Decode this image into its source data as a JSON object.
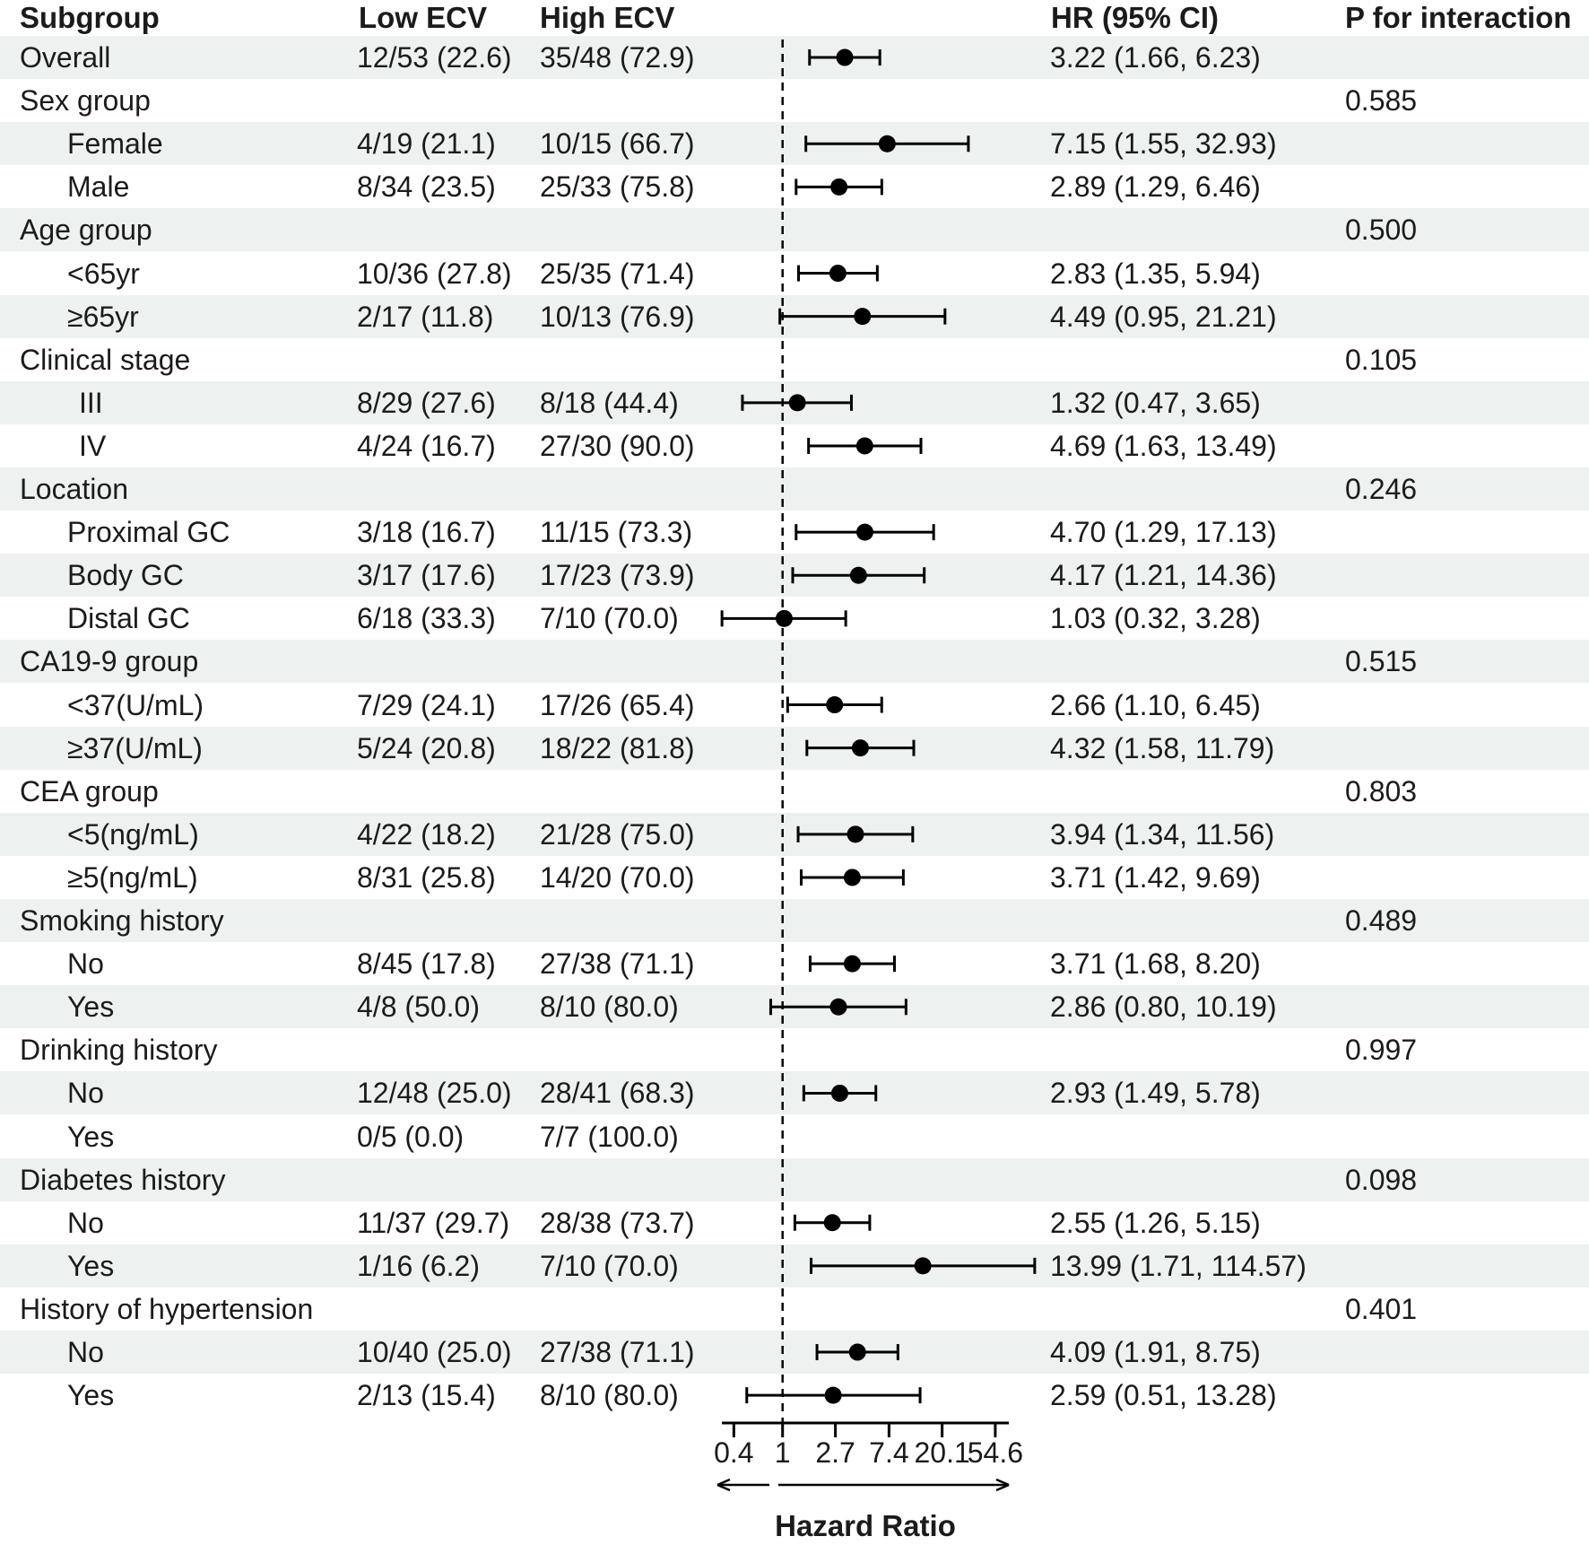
{
  "header": {
    "subgroup": "Subgroup",
    "low_ecv": "Low ECV",
    "high_ecv": "High ECV",
    "hr_ci": "HR (95% CI)",
    "p_interaction": "P for interaction"
  },
  "colors": {
    "stripe": "#edf1f0",
    "text": "#1b1b1b",
    "marker": "#000000"
  },
  "chart_data": {
    "type": "forest",
    "x_scale": "natural-log",
    "x_label": "Hazard Ratio",
    "null_line": 1,
    "legend_position": "none",
    "grid": false,
    "x_ticks": [
      {
        "value": 0.4,
        "label": "0.4"
      },
      {
        "value": 1,
        "label": "1"
      },
      {
        "value": 2.7,
        "label": "2.7"
      },
      {
        "value": 7.4,
        "label": "7.4"
      },
      {
        "value": 20.1,
        "label": "20.1"
      },
      {
        "value": 54.6,
        "label": "54.6"
      }
    ],
    "rows": [
      {
        "label": "Overall",
        "indent": 0,
        "low": "12/53 (22.6)",
        "high": "35/48 (72.9)",
        "hr": 3.22,
        "ci_low": 1.66,
        "ci_high": 6.23,
        "hr_text": "3.22 (1.66, 6.23)",
        "p": ""
      },
      {
        "label": "Sex group",
        "indent": 0,
        "low": "",
        "high": "",
        "hr": null,
        "ci_low": null,
        "ci_high": null,
        "hr_text": "",
        "p": "0.585"
      },
      {
        "label": "Female",
        "indent": 1,
        "low": "4/19 (21.1)",
        "high": "10/15 (66.7)",
        "hr": 7.15,
        "ci_low": 1.55,
        "ci_high": 32.93,
        "hr_text": "7.15 (1.55, 32.93)",
        "p": ""
      },
      {
        "label": "Male",
        "indent": 1,
        "low": "8/34 (23.5)",
        "high": "25/33 (75.8)",
        "hr": 2.89,
        "ci_low": 1.29,
        "ci_high": 6.46,
        "hr_text": "2.89 (1.29, 6.46)",
        "p": ""
      },
      {
        "label": "Age group",
        "indent": 0,
        "low": "",
        "high": "",
        "hr": null,
        "ci_low": null,
        "ci_high": null,
        "hr_text": "",
        "p": "0.500"
      },
      {
        "label": "<65yr",
        "indent": 1,
        "low": "10/36 (27.8)",
        "high": "25/35 (71.4)",
        "hr": 2.83,
        "ci_low": 1.35,
        "ci_high": 5.94,
        "hr_text": "2.83 (1.35, 5.94)",
        "p": ""
      },
      {
        "label": "≥65yr",
        "indent": 1,
        "low": "2/17 (11.8)",
        "high": "10/13 (76.9)",
        "hr": 4.49,
        "ci_low": 0.95,
        "ci_high": 21.21,
        "hr_text": "4.49 (0.95, 21.21)",
        "p": ""
      },
      {
        "label": "Clinical stage",
        "indent": 0,
        "low": "",
        "high": "",
        "hr": null,
        "ci_low": null,
        "ci_high": null,
        "hr_text": "",
        "p": "0.105"
      },
      {
        "label": "III",
        "indent": 2,
        "low": "8/29 (27.6)",
        "high": "8/18 (44.4)",
        "hr": 1.32,
        "ci_low": 0.47,
        "ci_high": 3.65,
        "hr_text": "1.32 (0.47, 3.65)",
        "p": ""
      },
      {
        "label": "IV",
        "indent": 2,
        "low": "4/24 (16.7)",
        "high": "27/30 (90.0)",
        "hr": 4.69,
        "ci_low": 1.63,
        "ci_high": 13.49,
        "hr_text": "4.69 (1.63, 13.49)",
        "p": ""
      },
      {
        "label": "Location",
        "indent": 0,
        "low": "",
        "high": "",
        "hr": null,
        "ci_low": null,
        "ci_high": null,
        "hr_text": "",
        "p": "0.246"
      },
      {
        "label": "Proximal GC",
        "indent": 1,
        "low": "3/18 (16.7)",
        "high": "11/15 (73.3)",
        "hr": 4.7,
        "ci_low": 1.29,
        "ci_high": 17.13,
        "hr_text": "4.70 (1.29, 17.13)",
        "p": ""
      },
      {
        "label": "Body GC",
        "indent": 1,
        "low": "3/17 (17.6)",
        "high": "17/23 (73.9)",
        "hr": 4.17,
        "ci_low": 1.21,
        "ci_high": 14.36,
        "hr_text": "4.17 (1.21, 14.36)",
        "p": ""
      },
      {
        "label": "Distal GC",
        "indent": 1,
        "low": "6/18 (33.3)",
        "high": "7/10 (70.0)",
        "hr": 1.03,
        "ci_low": 0.32,
        "ci_high": 3.28,
        "hr_text": "1.03 (0.32, 3.28)",
        "p": ""
      },
      {
        "label": "CA19-9 group",
        "indent": 0,
        "low": "",
        "high": "",
        "hr": null,
        "ci_low": null,
        "ci_high": null,
        "hr_text": "",
        "p": "0.515"
      },
      {
        "label": "<37(U/mL)",
        "indent": 1,
        "low": "7/29 (24.1)",
        "high": "17/26 (65.4)",
        "hr": 2.66,
        "ci_low": 1.1,
        "ci_high": 6.45,
        "hr_text": "2.66 (1.10, 6.45)",
        "p": ""
      },
      {
        "label": "≥37(U/mL)",
        "indent": 1,
        "low": "5/24 (20.8)",
        "high": "18/22 (81.8)",
        "hr": 4.32,
        "ci_low": 1.58,
        "ci_high": 11.79,
        "hr_text": "4.32 (1.58, 11.79)",
        "p": ""
      },
      {
        "label": "CEA group",
        "indent": 0,
        "low": "",
        "high": "",
        "hr": null,
        "ci_low": null,
        "ci_high": null,
        "hr_text": "",
        "p": "0.803"
      },
      {
        "label": "<5(ng/mL)",
        "indent": 1,
        "low": "4/22 (18.2)",
        "high": "21/28 (75.0)",
        "hr": 3.94,
        "ci_low": 1.34,
        "ci_high": 11.56,
        "hr_text": "3.94 (1.34, 11.56)",
        "p": ""
      },
      {
        "label": "≥5(ng/mL)",
        "indent": 1,
        "low": "8/31 (25.8)",
        "high": "14/20 (70.0)",
        "hr": 3.71,
        "ci_low": 1.42,
        "ci_high": 9.69,
        "hr_text": "3.71 (1.42, 9.69)",
        "p": ""
      },
      {
        "label": "Smoking history",
        "indent": 0,
        "low": "",
        "high": "",
        "hr": null,
        "ci_low": null,
        "ci_high": null,
        "hr_text": "",
        "p": "0.489"
      },
      {
        "label": "No",
        "indent": 1,
        "low": "8/45 (17.8)",
        "high": "27/38 (71.1)",
        "hr": 3.71,
        "ci_low": 1.68,
        "ci_high": 8.2,
        "hr_text": "3.71 (1.68, 8.20)",
        "p": ""
      },
      {
        "label": "Yes",
        "indent": 1,
        "low": "4/8 (50.0)",
        "high": "8/10 (80.0)",
        "hr": 2.86,
        "ci_low": 0.8,
        "ci_high": 10.19,
        "hr_text": "2.86 (0.80, 10.19)",
        "p": ""
      },
      {
        "label": "Drinking history",
        "indent": 0,
        "low": "",
        "high": "",
        "hr": null,
        "ci_low": null,
        "ci_high": null,
        "hr_text": "",
        "p": "0.997"
      },
      {
        "label": "No",
        "indent": 1,
        "low": "12/48 (25.0)",
        "high": "28/41 (68.3)",
        "hr": 2.93,
        "ci_low": 1.49,
        "ci_high": 5.78,
        "hr_text": "2.93 (1.49, 5.78)",
        "p": ""
      },
      {
        "label": "Yes",
        "indent": 1,
        "low": "0/5 (0.0)",
        "high": "7/7 (100.0)",
        "hr": null,
        "ci_low": null,
        "ci_high": null,
        "hr_text": "",
        "p": ""
      },
      {
        "label": "Diabetes history",
        "indent": 0,
        "low": "",
        "high": "",
        "hr": null,
        "ci_low": null,
        "ci_high": null,
        "hr_text": "",
        "p": "0.098"
      },
      {
        "label": "No",
        "indent": 1,
        "low": "11/37 (29.7)",
        "high": "28/38 (73.7)",
        "hr": 2.55,
        "ci_low": 1.26,
        "ci_high": 5.15,
        "hr_text": "2.55 (1.26, 5.15)",
        "p": ""
      },
      {
        "label": "Yes",
        "indent": 1,
        "low": "1/16 (6.2)",
        "high": "7/10 (70.0)",
        "hr": 13.99,
        "ci_low": 1.71,
        "ci_high": 114.57,
        "hr_text": "13.99 (1.71, 114.57)",
        "p": ""
      },
      {
        "label": "History of hypertension",
        "indent": 0,
        "low": "",
        "high": "",
        "hr": null,
        "ci_low": null,
        "ci_high": null,
        "hr_text": "",
        "p": "0.401"
      },
      {
        "label": "No",
        "indent": 1,
        "low": "10/40 (25.0)",
        "high": "27/38 (71.1)",
        "hr": 4.09,
        "ci_low": 1.91,
        "ci_high": 8.75,
        "hr_text": "4.09 (1.91, 8.75)",
        "p": ""
      },
      {
        "label": "Yes",
        "indent": 1,
        "low": "2/13 (15.4)",
        "high": "8/10 (80.0)",
        "hr": 2.59,
        "ci_low": 0.51,
        "ci_high": 13.28,
        "hr_text": "2.59 (0.51, 13.28)",
        "p": ""
      }
    ]
  }
}
